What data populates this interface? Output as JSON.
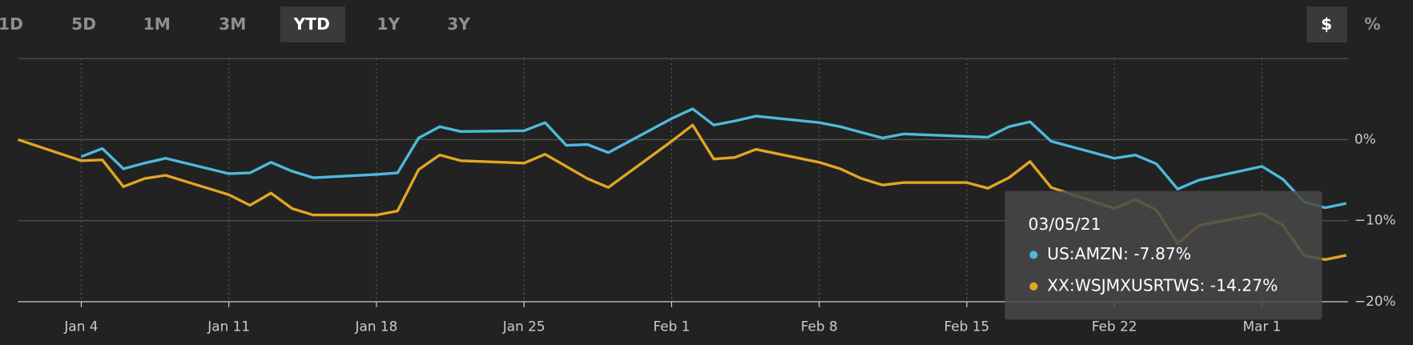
{
  "range_buttons": [
    "1D",
    "5D",
    "1M",
    "3M",
    "YTD",
    "1Y",
    "3Y"
  ],
  "selected_range": "YTD",
  "unit_buttons": [
    "$",
    "%"
  ],
  "selected_unit": "$",
  "chart_data": {
    "type": "line",
    "x": [
      "2021-01-01",
      "2021-01-04",
      "2021-01-05",
      "2021-01-06",
      "2021-01-07",
      "2021-01-08",
      "2021-01-11",
      "2021-01-12",
      "2021-01-13",
      "2021-01-14",
      "2021-01-15",
      "2021-01-18",
      "2021-01-19",
      "2021-01-20",
      "2021-01-21",
      "2021-01-22",
      "2021-01-25",
      "2021-01-26",
      "2021-01-27",
      "2021-01-28",
      "2021-01-29",
      "2021-02-01",
      "2021-02-02",
      "2021-02-03",
      "2021-02-04",
      "2021-02-05",
      "2021-02-08",
      "2021-02-09",
      "2021-02-10",
      "2021-02-11",
      "2021-02-12",
      "2021-02-15",
      "2021-02-16",
      "2021-02-17",
      "2021-02-18",
      "2021-02-19",
      "2021-02-22",
      "2021-02-23",
      "2021-02-24",
      "2021-02-25",
      "2021-02-26",
      "2021-03-01",
      "2021-03-02",
      "2021-03-03",
      "2021-03-04",
      "2021-03-05"
    ],
    "series": [
      {
        "name": "US:AMZN",
        "color": "#4fb9dd",
        "values": [
          null,
          -2.1,
          -1.1,
          -3.6,
          -2.9,
          -2.3,
          -4.2,
          -4.1,
          -2.8,
          -3.9,
          -4.7,
          -4.3,
          -4.1,
          0.2,
          1.6,
          1.0,
          1.1,
          2.1,
          -0.7,
          -0.6,
          -1.6,
          2.6,
          3.8,
          1.8,
          2.3,
          2.9,
          2.1,
          1.6,
          0.9,
          0.2,
          0.7,
          0.4,
          0.3,
          1.6,
          2.2,
          -0.2,
          -2.3,
          -1.9,
          -3.0,
          -6.1,
          -5.0,
          -3.3,
          -4.9,
          -7.7,
          -8.4,
          -7.87
        ]
      },
      {
        "name": "XX:WSJMXUSRTWS",
        "color": "#e2a623",
        "values": [
          0,
          -2.6,
          -2.5,
          -5.8,
          -4.8,
          -4.4,
          -6.8,
          -8.1,
          -6.6,
          -8.5,
          -9.3,
          -9.3,
          -8.8,
          -3.7,
          -1.9,
          -2.6,
          -2.9,
          -1.8,
          -3.3,
          -4.8,
          -5.9,
          -0.2,
          1.8,
          -2.4,
          -2.2,
          -1.2,
          -2.8,
          -3.6,
          -4.8,
          -5.6,
          -5.3,
          -5.3,
          -6.0,
          -4.7,
          -2.7,
          -5.9,
          -8.5,
          -7.4,
          -8.7,
          -12.8,
          -10.6,
          -9.1,
          -10.6,
          -14.3,
          -14.8,
          -14.27
        ]
      }
    ],
    "xlim": [
      "2021-01-01",
      "2021-03-05"
    ],
    "xticks": [
      {
        "value": "2021-01-04",
        "label": "Jan 4"
      },
      {
        "value": "2021-01-11",
        "label": "Jan 11"
      },
      {
        "value": "2021-01-18",
        "label": "Jan 18"
      },
      {
        "value": "2021-01-25",
        "label": "Jan 25"
      },
      {
        "value": "2021-02-01",
        "label": "Feb 1"
      },
      {
        "value": "2021-02-08",
        "label": "Feb 8"
      },
      {
        "value": "2021-02-15",
        "label": "Feb 15"
      },
      {
        "value": "2021-02-22",
        "label": "Feb 22"
      },
      {
        "value": "2021-03-01",
        "label": "Mar 1"
      }
    ],
    "ylim": [
      -20,
      10
    ],
    "yticks": [
      {
        "value": 0,
        "label": "0%"
      },
      {
        "value": -10,
        "label": "−10%"
      },
      {
        "value": -20,
        "label": "−20%"
      }
    ],
    "grid": true,
    "tooltip": {
      "title": "03/05/21",
      "lines": [
        "US:AMZN: -7.87%",
        "XX:WSJMXUSRTWS: -14.27%"
      ]
    }
  }
}
